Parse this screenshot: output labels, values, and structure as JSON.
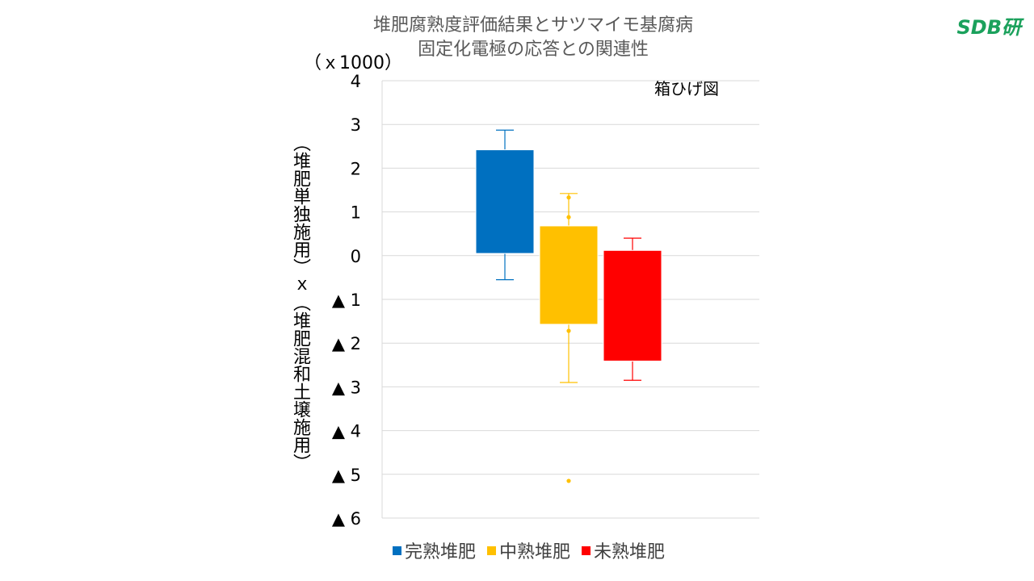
{
  "title_line1": "堆肥腐熟度評価結果とサツマイモ基腐病",
  "title_line2": "固定化電極の応答との関連性",
  "logo": "SDB研",
  "unit_label": "（ｘ1000）",
  "inner_label": "箱ひげ図",
  "chart_data": {
    "type": "box",
    "title": "堆肥腐熟度評価結果とサツマイモ基腐病 固定化電極の応答との関連性",
    "ylabel": "（堆肥単独施用）ｘ（堆肥混和土壌施用）",
    "yunit": "（ｘ1000）",
    "ylim": [
      -6,
      4
    ],
    "yticks": [
      4,
      3,
      2,
      1,
      0,
      -1,
      -2,
      -3,
      -4,
      -5,
      -6
    ],
    "ytick_labels": [
      "4",
      "3",
      "2",
      "1",
      "0",
      "▲ 1",
      "▲ 2",
      "▲ 3",
      "▲ 4",
      "▲ 5",
      "▲ 6"
    ],
    "grid": true,
    "legend_position": "bottom",
    "series": [
      {
        "name": "完熟堆肥",
        "color": "#0070c0",
        "whisker_low": -0.55,
        "q1": 0.05,
        "q3": 2.42,
        "whisker_high": 2.87,
        "outliers": []
      },
      {
        "name": "中熟堆肥",
        "color": "#ffc000",
        "whisker_low": -2.9,
        "q1": -1.57,
        "q3": 0.68,
        "whisker_high": 1.42,
        "outliers": [
          1.33,
          0.88,
          -1.72,
          -5.15
        ]
      },
      {
        "name": "未熟堆肥",
        "color": "#ff0000",
        "whisker_low": -2.85,
        "q1": -2.41,
        "q3": 0.12,
        "whisker_high": 0.4,
        "outliers": []
      }
    ]
  }
}
